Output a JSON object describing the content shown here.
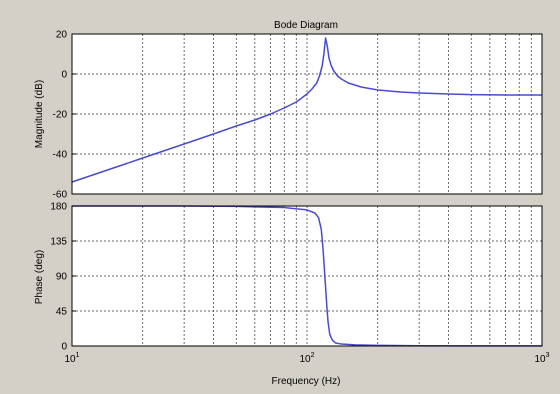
{
  "chart_data": {
    "type": "line",
    "title": "Bode Diagram",
    "xlabel": "Frequency  (Hz)",
    "x_scale": "log",
    "xlim": [
      10,
      1000
    ],
    "x_ticks": [
      {
        "value": 10,
        "base": "10",
        "exp": "1"
      },
      {
        "value": 100,
        "base": "10",
        "exp": "2"
      },
      {
        "value": 1000,
        "base": "10",
        "exp": "3"
      }
    ],
    "grid": true,
    "line_color": "#4a4ad0",
    "panels": [
      {
        "name": "magnitude",
        "ylabel": "Magnitude (dB)",
        "ylim": [
          -60,
          20
        ],
        "y_ticks": [
          "20",
          "0",
          "-20",
          "-40",
          "-60"
        ],
        "y_tick_values": [
          20,
          0,
          -20,
          -40,
          -60
        ],
        "series": [
          {
            "x": [
              10,
              15,
              20,
              30,
              40,
              50,
              60,
              70,
              80,
              90,
              100,
              105,
              110,
              113,
              116,
              118,
              120,
              122,
              124,
              127,
              130,
              135,
              140,
              150,
              170,
              200,
              250,
              300,
              400,
              500,
              700,
              1000
            ],
            "values": [
              -54,
              -47,
              -42,
              -35,
              -30,
              -26,
              -23,
              -20,
              -17,
              -14,
              -10,
              -7.5,
              -4.5,
              -1,
              4,
              10,
              18,
              14,
              8,
              4,
              1.5,
              -1,
              -2.5,
              -4.5,
              -6.5,
              -8,
              -9,
              -9.5,
              -10,
              -10.3,
              -10.5,
              -10.5
            ]
          }
        ]
      },
      {
        "name": "phase",
        "ylabel": "Phase (deg)",
        "ylim": [
          0,
          180
        ],
        "y_ticks": [
          "180",
          "135",
          "90",
          "45",
          "0"
        ],
        "y_tick_values": [
          180,
          135,
          90,
          45,
          0
        ],
        "series": [
          {
            "x": [
              10,
              30,
              50,
              80,
              100,
              108,
              112,
              115,
              117,
              118.5,
              120,
              121.5,
              123,
              125,
              128,
              132,
              140,
              160,
              200,
              300,
              500,
              1000
            ],
            "values": [
              180,
              180,
              179.5,
              178,
              175,
              171,
              165,
              150,
              125,
              100,
              75,
              50,
              30,
              15,
              8,
              4,
              2.5,
              1.5,
              0.8,
              0.4,
              0.2,
              0.1
            ]
          }
        ]
      }
    ]
  }
}
